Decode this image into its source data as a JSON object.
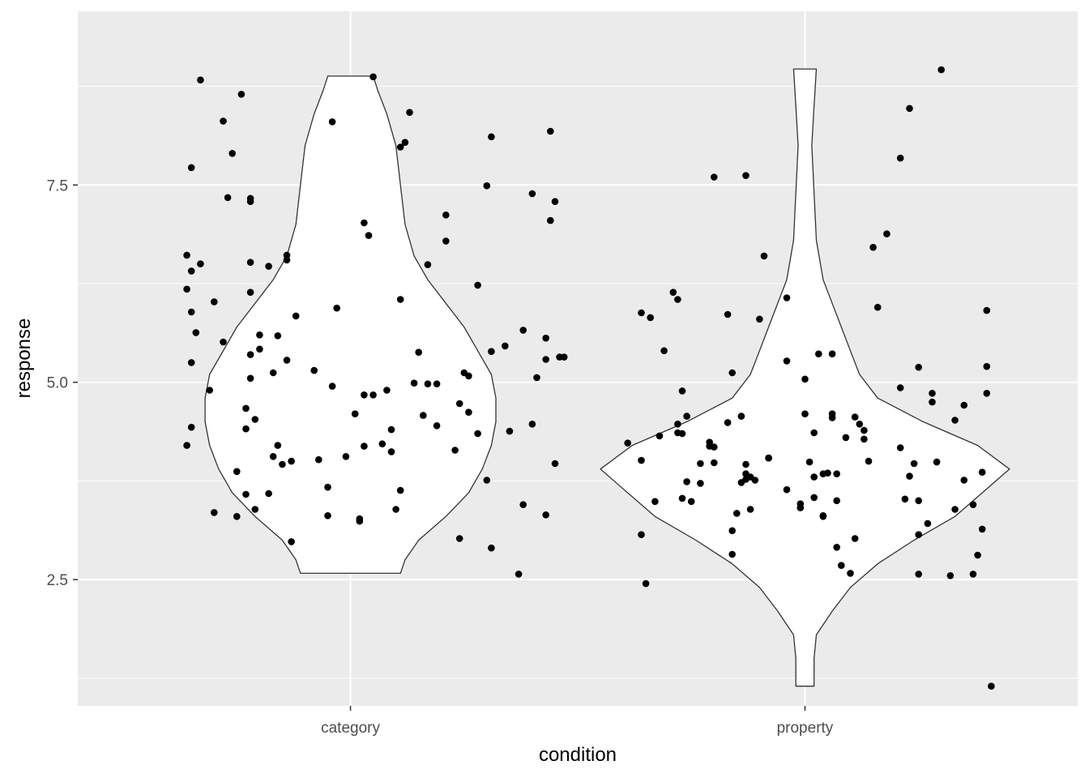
{
  "chart_data": {
    "type": "violin",
    "xlabel": "condition",
    "ylabel": "response",
    "categories": [
      "category",
      "property"
    ],
    "ylim": [
      0.9,
      9.7
    ],
    "y_ticks": [
      2.5,
      5.0,
      7.5
    ],
    "y_tick_labels": [
      "2.5",
      "5.0",
      "7.5"
    ],
    "grid": true,
    "colors": {
      "panel": "#ebebeb",
      "grid": "#ffffff",
      "violin_fill": "#ffffff",
      "violin_stroke": "#333333",
      "point": "#000000"
    },
    "violins": [
      {
        "category": "category",
        "min": 2.58,
        "max": 8.88,
        "profile": [
          [
            2.58,
            0.11
          ],
          [
            2.75,
            0.12
          ],
          [
            3.0,
            0.15
          ],
          [
            3.3,
            0.21
          ],
          [
            3.6,
            0.26
          ],
          [
            3.9,
            0.29
          ],
          [
            4.2,
            0.31
          ],
          [
            4.5,
            0.32
          ],
          [
            4.8,
            0.32
          ],
          [
            5.1,
            0.31
          ],
          [
            5.4,
            0.28
          ],
          [
            5.7,
            0.25
          ],
          [
            6.0,
            0.21
          ],
          [
            6.3,
            0.17
          ],
          [
            6.6,
            0.14
          ],
          [
            7.0,
            0.12
          ],
          [
            7.5,
            0.11
          ],
          [
            8.0,
            0.1
          ],
          [
            8.4,
            0.08
          ],
          [
            8.7,
            0.06
          ],
          [
            8.88,
            0.05
          ]
        ]
      },
      {
        "category": "property",
        "min": 1.15,
        "max": 8.97,
        "profile": [
          [
            1.15,
            0.02
          ],
          [
            1.5,
            0.02
          ],
          [
            1.8,
            0.025
          ],
          [
            2.1,
            0.06
          ],
          [
            2.4,
            0.1
          ],
          [
            2.7,
            0.16
          ],
          [
            3.0,
            0.24
          ],
          [
            3.3,
            0.33
          ],
          [
            3.6,
            0.39
          ],
          [
            3.9,
            0.45
          ],
          [
            4.2,
            0.38
          ],
          [
            4.5,
            0.26
          ],
          [
            4.8,
            0.16
          ],
          [
            5.1,
            0.12
          ],
          [
            5.4,
            0.1
          ],
          [
            5.7,
            0.08
          ],
          [
            6.0,
            0.06
          ],
          [
            6.3,
            0.04
          ],
          [
            6.8,
            0.025
          ],
          [
            7.4,
            0.02
          ],
          [
            8.0,
            0.015
          ],
          [
            8.5,
            0.02
          ],
          [
            8.97,
            0.025
          ]
        ]
      }
    ],
    "points": [
      [
        0.64,
        4.2
      ],
      [
        0.65,
        4.43
      ],
      [
        0.65,
        5.25
      ],
      [
        0.64,
        6.18
      ],
      [
        0.65,
        5.89
      ],
      [
        0.65,
        6.41
      ],
      [
        0.64,
        6.61
      ],
      [
        0.65,
        7.72
      ],
      [
        0.67,
        8.83
      ],
      [
        0.66,
        5.63
      ],
      [
        0.67,
        6.5
      ],
      [
        0.69,
        4.9
      ],
      [
        0.7,
        6.02
      ],
      [
        0.7,
        3.35
      ],
      [
        0.72,
        8.31
      ],
      [
        0.72,
        5.51
      ],
      [
        0.73,
        7.34
      ],
      [
        0.74,
        7.9
      ],
      [
        0.75,
        3.3
      ],
      [
        0.75,
        3.87
      ],
      [
        0.76,
        8.65
      ],
      [
        0.77,
        3.58
      ],
      [
        0.77,
        4.41
      ],
      [
        0.77,
        4.67
      ],
      [
        0.78,
        6.52
      ],
      [
        0.78,
        7.33
      ],
      [
        0.78,
        7.29
      ],
      [
        0.78,
        6.14
      ],
      [
        0.78,
        5.05
      ],
      [
        0.78,
        5.35
      ],
      [
        0.79,
        4.53
      ],
      [
        0.79,
        3.39
      ],
      [
        0.8,
        5.42
      ],
      [
        0.8,
        5.6
      ],
      [
        0.82,
        6.47
      ],
      [
        0.82,
        3.59
      ],
      [
        0.83,
        4.06
      ],
      [
        0.83,
        5.12
      ],
      [
        0.84,
        4.2
      ],
      [
        0.84,
        5.59
      ],
      [
        0.85,
        3.96
      ],
      [
        0.86,
        6.61
      ],
      [
        0.86,
        6.55
      ],
      [
        0.86,
        5.28
      ],
      [
        0.87,
        4.0
      ],
      [
        0.87,
        2.98
      ],
      [
        0.88,
        5.84
      ],
      [
        0.92,
        5.15
      ],
      [
        0.93,
        4.02
      ],
      [
        0.95,
        3.67
      ],
      [
        0.95,
        3.31
      ],
      [
        0.96,
        4.95
      ],
      [
        0.96,
        8.3
      ],
      [
        0.97,
        5.94
      ],
      [
        0.99,
        4.06
      ],
      [
        1.01,
        4.6
      ],
      [
        1.02,
        3.27
      ],
      [
        1.02,
        3.24
      ],
      [
        1.03,
        4.19
      ],
      [
        1.03,
        4.84
      ],
      [
        1.03,
        7.02
      ],
      [
        1.04,
        6.86
      ],
      [
        1.05,
        4.84
      ],
      [
        1.05,
        8.87
      ],
      [
        1.07,
        4.22
      ],
      [
        1.08,
        4.9
      ],
      [
        1.09,
        4.4
      ],
      [
        1.09,
        4.12
      ],
      [
        1.1,
        3.39
      ],
      [
        1.11,
        3.63
      ],
      [
        1.11,
        6.05
      ],
      [
        1.11,
        7.98
      ],
      [
        1.12,
        8.04
      ],
      [
        1.13,
        8.42
      ],
      [
        1.14,
        4.99
      ],
      [
        1.15,
        5.38
      ],
      [
        1.16,
        4.58
      ],
      [
        1.17,
        6.49
      ],
      [
        1.17,
        4.98
      ],
      [
        1.19,
        4.98
      ],
      [
        1.19,
        4.45
      ],
      [
        1.21,
        7.12
      ],
      [
        1.21,
        6.79
      ],
      [
        1.23,
        4.14
      ],
      [
        1.24,
        3.02
      ],
      [
        1.24,
        4.73
      ],
      [
        1.25,
        5.12
      ],
      [
        1.26,
        5.08
      ],
      [
        1.26,
        4.62
      ],
      [
        1.28,
        4.35
      ],
      [
        1.28,
        6.23
      ],
      [
        1.3,
        7.49
      ],
      [
        1.3,
        3.76
      ],
      [
        1.31,
        5.39
      ],
      [
        1.31,
        2.9
      ],
      [
        1.31,
        8.11
      ],
      [
        1.34,
        5.46
      ],
      [
        1.35,
        4.38
      ],
      [
        1.37,
        2.57
      ],
      [
        1.38,
        3.45
      ],
      [
        1.38,
        5.66
      ],
      [
        1.4,
        4.47
      ],
      [
        1.4,
        7.39
      ],
      [
        1.41,
        5.06
      ],
      [
        1.43,
        5.56
      ],
      [
        1.43,
        5.29
      ],
      [
        1.43,
        3.32
      ],
      [
        1.44,
        8.18
      ],
      [
        1.44,
        7.05
      ],
      [
        1.45,
        3.97
      ],
      [
        1.45,
        7.29
      ],
      [
        1.46,
        5.32
      ],
      [
        1.47,
        5.32
      ],
      [
        1.61,
        4.23
      ],
      [
        1.64,
        3.07
      ],
      [
        1.64,
        4.01
      ],
      [
        1.64,
        5.88
      ],
      [
        1.65,
        2.45
      ],
      [
        1.66,
        5.82
      ],
      [
        1.67,
        3.49
      ],
      [
        1.68,
        4.32
      ],
      [
        1.69,
        5.4
      ],
      [
        1.71,
        6.14
      ],
      [
        1.72,
        4.36
      ],
      [
        1.72,
        4.47
      ],
      [
        1.72,
        6.05
      ],
      [
        1.73,
        3.53
      ],
      [
        1.73,
        4.35
      ],
      [
        1.73,
        4.89
      ],
      [
        1.74,
        3.74
      ],
      [
        1.74,
        4.57
      ],
      [
        1.75,
        3.49
      ],
      [
        1.77,
        3.97
      ],
      [
        1.77,
        3.72
      ],
      [
        1.79,
        4.24
      ],
      [
        1.79,
        4.19
      ],
      [
        1.8,
        3.98
      ],
      [
        1.8,
        4.18
      ],
      [
        1.8,
        7.6
      ],
      [
        1.83,
        5.86
      ],
      [
        1.83,
        4.49
      ],
      [
        1.84,
        2.82
      ],
      [
        1.84,
        3.12
      ],
      [
        1.84,
        5.12
      ],
      [
        1.85,
        3.34
      ],
      [
        1.86,
        3.73
      ],
      [
        1.86,
        4.57
      ],
      [
        1.87,
        7.62
      ],
      [
        1.87,
        3.96
      ],
      [
        1.87,
        3.84
      ],
      [
        1.87,
        3.77
      ],
      [
        1.88,
        3.39
      ],
      [
        1.88,
        3.8
      ],
      [
        1.89,
        3.76
      ],
      [
        1.9,
        5.8
      ],
      [
        1.91,
        6.6
      ],
      [
        1.92,
        4.04
      ],
      [
        1.92,
        4.04
      ],
      [
        1.96,
        5.27
      ],
      [
        1.96,
        6.07
      ],
      [
        1.96,
        3.64
      ],
      [
        1.99,
        3.46
      ],
      [
        1.99,
        3.41
      ],
      [
        2.0,
        4.6
      ],
      [
        2.0,
        5.04
      ],
      [
        2.01,
        3.99
      ],
      [
        2.02,
        4.36
      ],
      [
        2.02,
        3.8
      ],
      [
        2.02,
        3.54
      ],
      [
        2.03,
        5.36
      ],
      [
        2.04,
        3.31
      ],
      [
        2.04,
        3.3
      ],
      [
        2.04,
        3.84
      ],
      [
        2.05,
        3.85
      ],
      [
        2.06,
        5.36
      ],
      [
        2.06,
        4.55
      ],
      [
        2.06,
        4.6
      ],
      [
        2.07,
        3.84
      ],
      [
        2.07,
        2.91
      ],
      [
        2.07,
        3.5
      ],
      [
        2.08,
        2.68
      ],
      [
        2.09,
        4.3
      ],
      [
        2.1,
        2.58
      ],
      [
        2.11,
        4.56
      ],
      [
        2.11,
        3.02
      ],
      [
        2.12,
        4.47
      ],
      [
        2.13,
        4.28
      ],
      [
        2.13,
        4.39
      ],
      [
        2.14,
        4.0
      ],
      [
        2.15,
        6.71
      ],
      [
        2.16,
        5.95
      ],
      [
        2.18,
        6.88
      ],
      [
        2.21,
        4.17
      ],
      [
        2.21,
        7.84
      ],
      [
        2.21,
        4.93
      ],
      [
        2.22,
        3.52
      ],
      [
        2.23,
        8.47
      ],
      [
        2.23,
        3.81
      ],
      [
        2.24,
        3.97
      ],
      [
        2.25,
        5.19
      ],
      [
        2.25,
        3.07
      ],
      [
        2.25,
        3.5
      ],
      [
        2.25,
        2.57
      ],
      [
        2.27,
        3.21
      ],
      [
        2.28,
        4.86
      ],
      [
        2.28,
        4.75
      ],
      [
        2.29,
        3.99
      ],
      [
        2.3,
        8.96
      ],
      [
        2.32,
        2.55
      ],
      [
        2.33,
        3.39
      ],
      [
        2.33,
        4.52
      ],
      [
        2.35,
        4.71
      ],
      [
        2.35,
        3.76
      ],
      [
        2.37,
        3.45
      ],
      [
        2.37,
        2.57
      ],
      [
        2.38,
        2.81
      ],
      [
        2.39,
        3.14
      ],
      [
        2.39,
        3.86
      ],
      [
        2.4,
        4.86
      ],
      [
        2.4,
        5.2
      ],
      [
        2.4,
        5.91
      ],
      [
        2.41,
        1.15
      ]
    ]
  }
}
